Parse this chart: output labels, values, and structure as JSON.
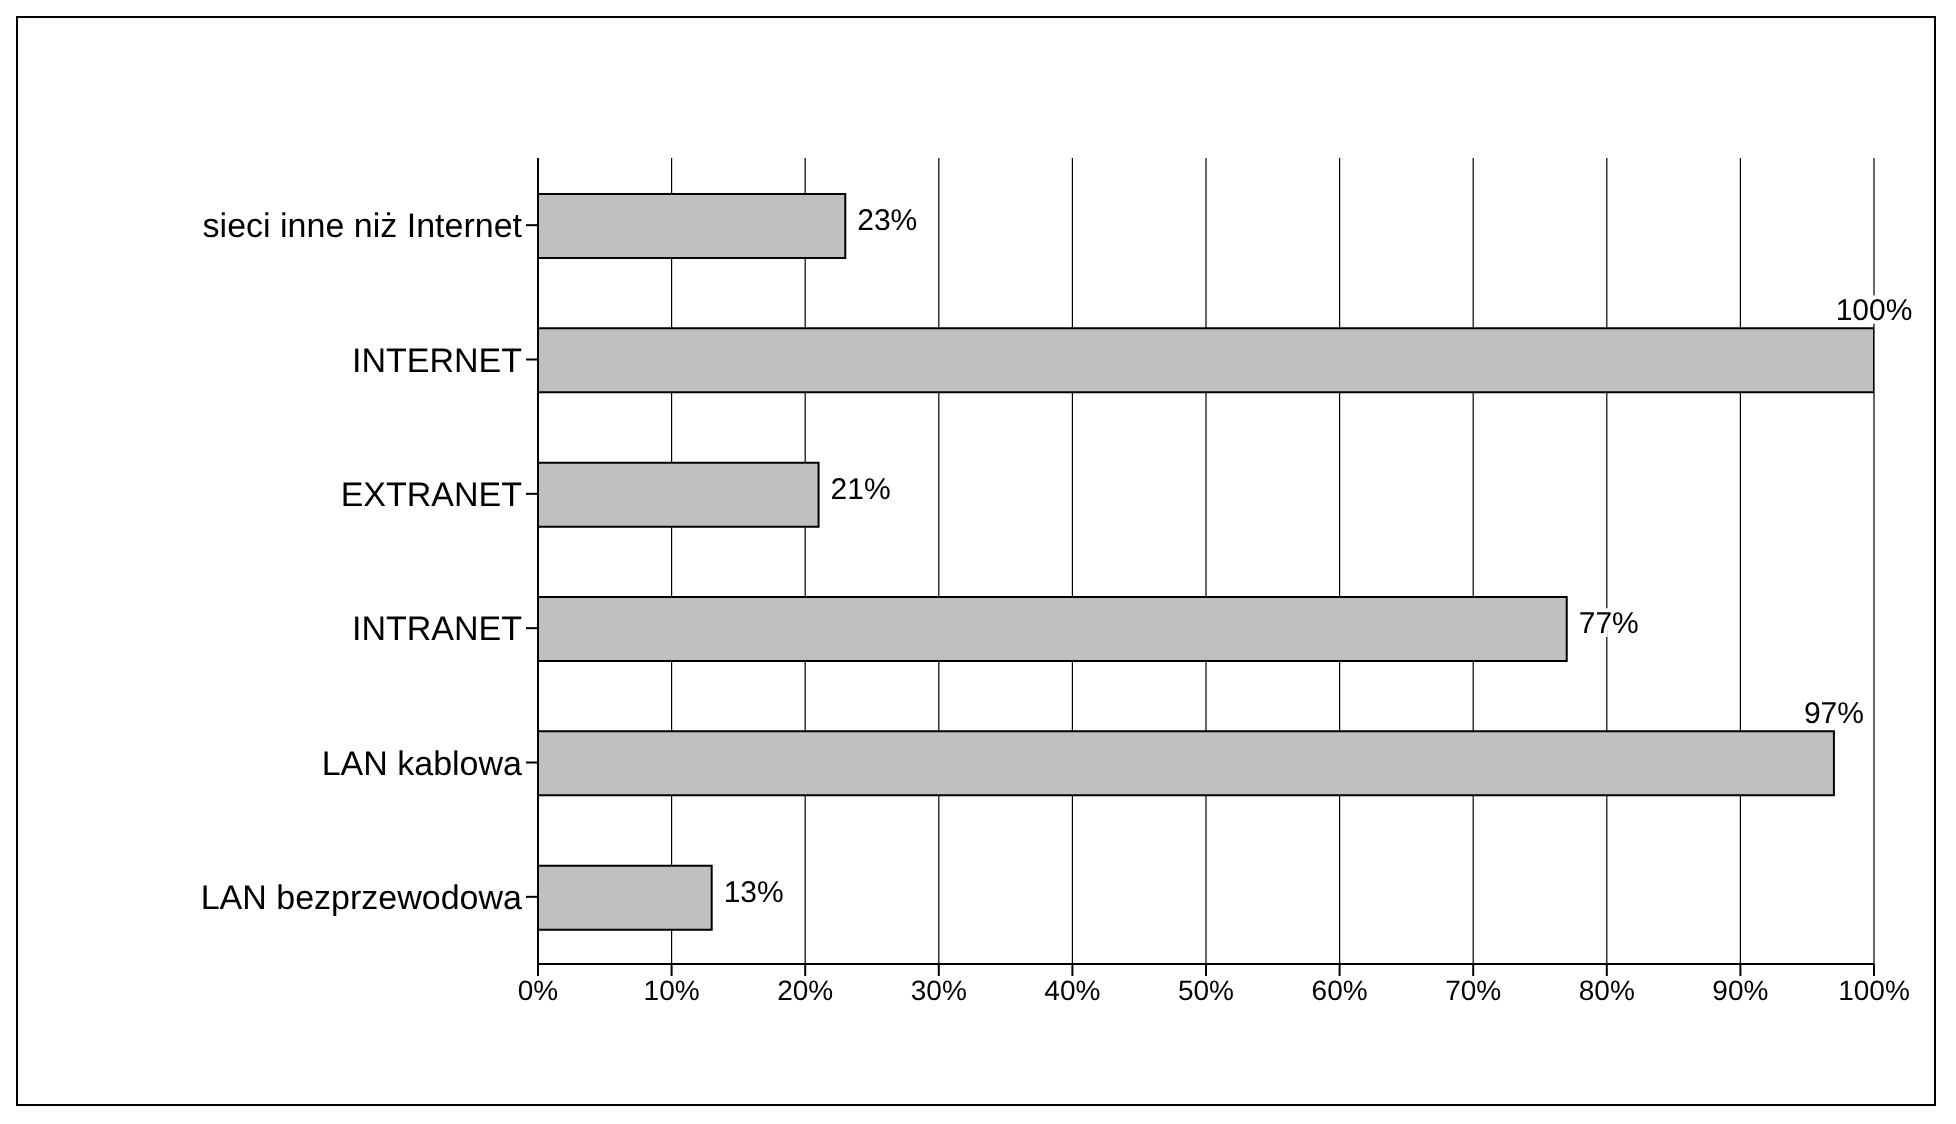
{
  "chart_data": {
    "type": "bar",
    "orientation": "horizontal",
    "categories": [
      "sieci inne niż Internet",
      "INTERNET",
      "EXTRANET",
      "INTRANET",
      "LAN kablowa",
      "LAN bezprzewodowa"
    ],
    "values": [
      23,
      100,
      21,
      77,
      97,
      13
    ],
    "value_labels": [
      "23%",
      "100%",
      "21%",
      "77%",
      "97%",
      "13%"
    ],
    "color": "#c0c0c0",
    "xlim": [
      0,
      100
    ],
    "xticks": [
      {
        "value": 0,
        "label": "0%"
      },
      {
        "value": 10,
        "label": "10%"
      },
      {
        "value": 20,
        "label": "20%"
      },
      {
        "value": 30,
        "label": "30%"
      },
      {
        "value": 40,
        "label": "40%"
      },
      {
        "value": 50,
        "label": "50%"
      },
      {
        "value": 60,
        "label": "60%"
      },
      {
        "value": 70,
        "label": "70%"
      },
      {
        "value": 80,
        "label": "80%"
      },
      {
        "value": 90,
        "label": "90%"
      },
      {
        "value": 100,
        "label": "100%"
      }
    ],
    "grid": "x",
    "legend": false
  }
}
